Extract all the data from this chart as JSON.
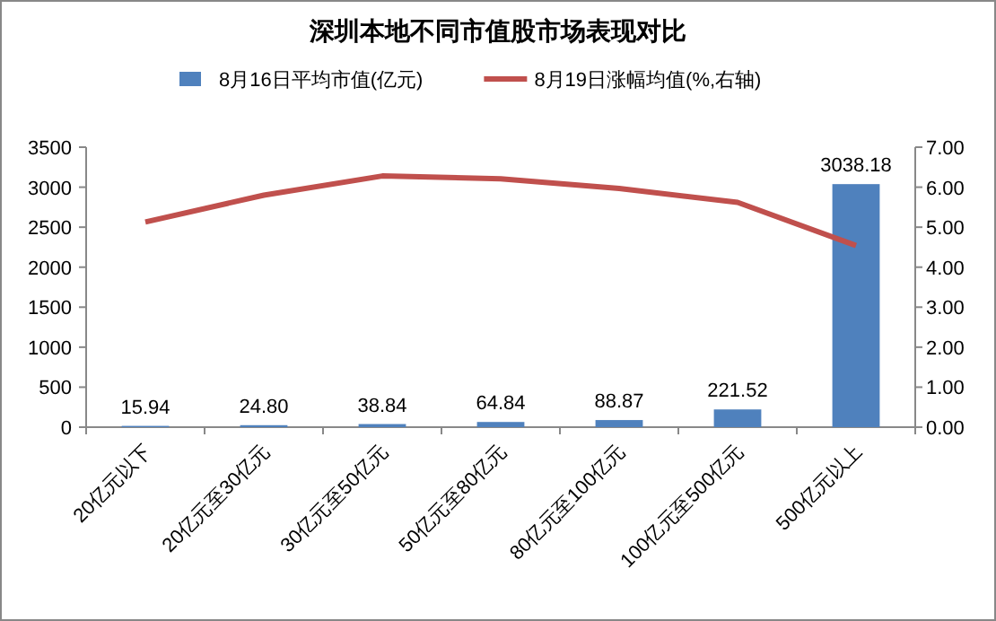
{
  "chart_data": {
    "type": "bar",
    "title": "深圳本地不同市值股市场表现对比",
    "categories": [
      "20亿元以下",
      "20亿元至30亿元",
      "30亿元至50亿元",
      "50亿元至80亿元",
      "80亿元至100亿元",
      "100亿元至500亿元",
      "500亿元以上"
    ],
    "series": [
      {
        "name": "8月16日平均市值(亿元)",
        "color": "#4f81bd",
        "values": [
          15.94,
          24.8,
          38.84,
          64.84,
          88.87,
          221.52,
          3038.18
        ],
        "value_labels": [
          "15.94",
          "24.80",
          "38.84",
          "64.84",
          "88.87",
          "221.52",
          "3038.18"
        ]
      },
      {
        "name": "8月19日涨幅均值(%,右轴)",
        "type": "line",
        "axis": "y2",
        "color": "#c0504d",
        "values": [
          5.13,
          5.8,
          6.28,
          6.21,
          5.97,
          5.62,
          4.54
        ]
      }
    ],
    "ylim": [
      0,
      3500
    ],
    "yticks": [
      0,
      500,
      1000,
      1500,
      2000,
      2500,
      3000,
      3500
    ],
    "y2lim": [
      0,
      7
    ],
    "y2ticks": [
      {
        "value": 0,
        "label": "0.00"
      },
      {
        "value": 1,
        "label": "1.00"
      },
      {
        "value": 2,
        "label": "2.00"
      },
      {
        "value": 3,
        "label": "3.00"
      },
      {
        "value": 4,
        "label": "4.00"
      },
      {
        "value": 5,
        "label": "5.00"
      },
      {
        "value": 6,
        "label": "6.00"
      },
      {
        "value": 7,
        "label": "7.00"
      }
    ],
    "legend": "top",
    "grid": false
  }
}
